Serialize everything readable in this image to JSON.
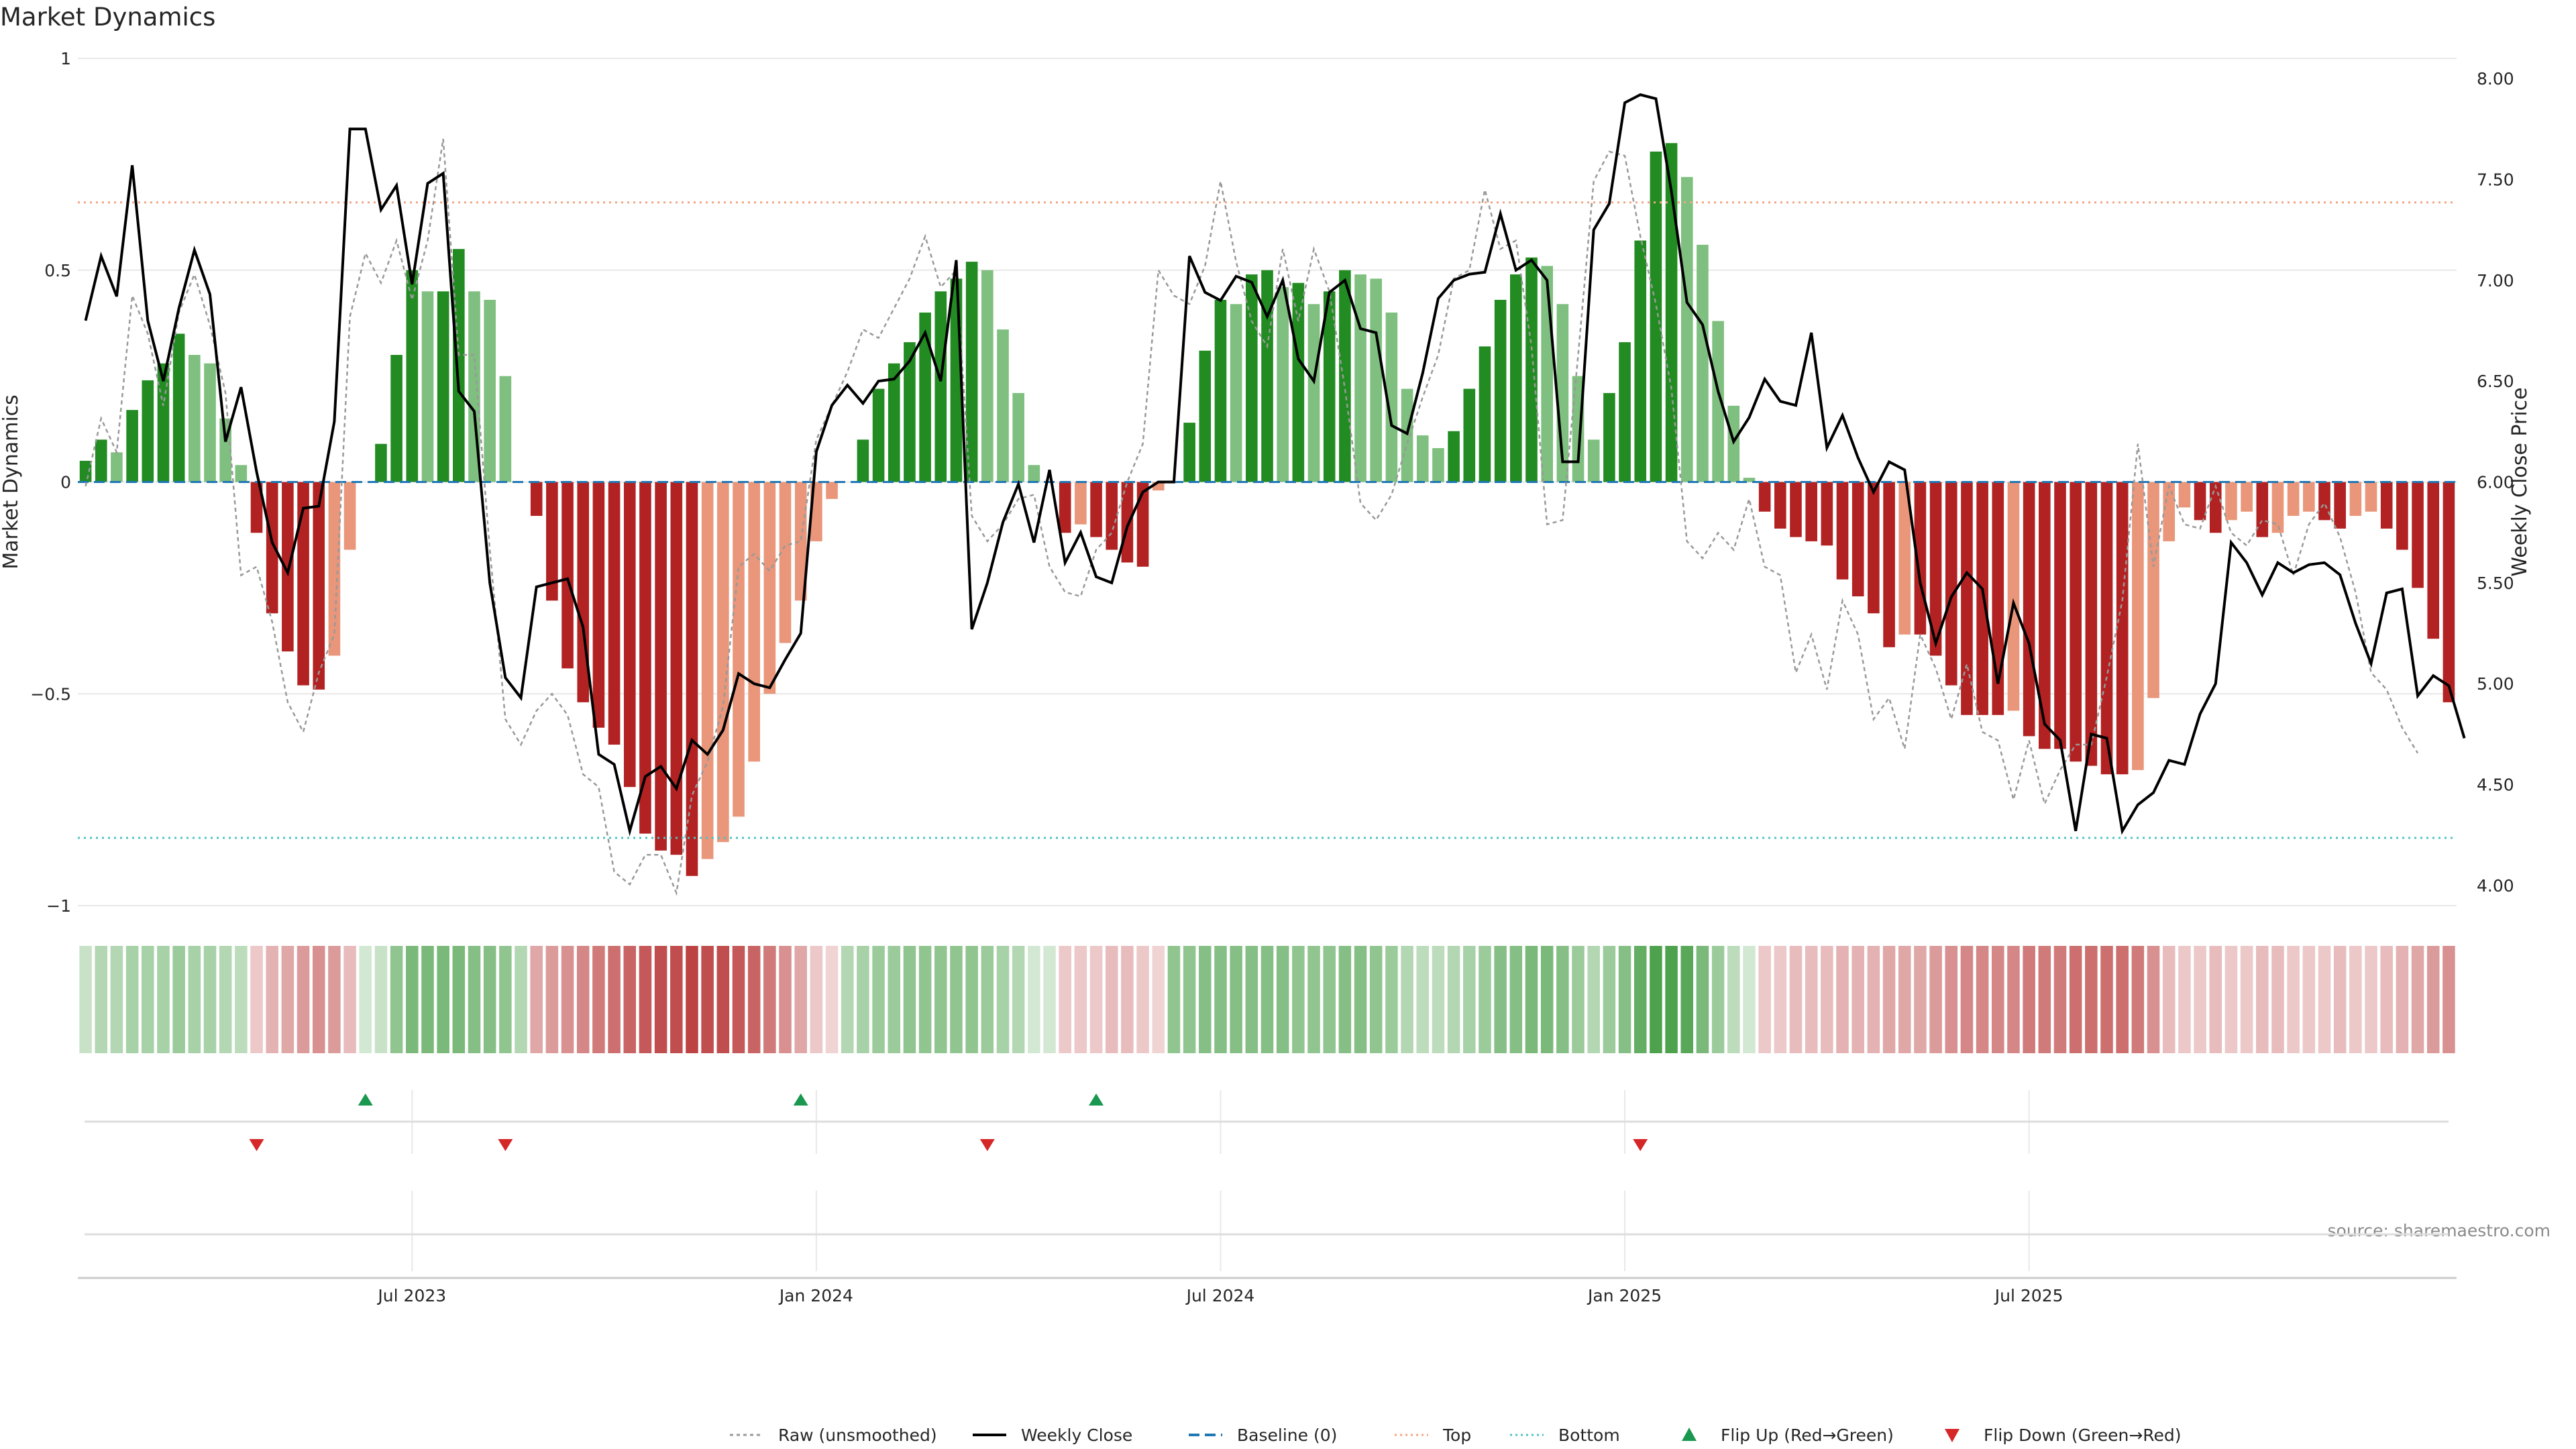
{
  "title": "Market Dynamics",
  "source": "source: sharemaestro.com",
  "colors": {
    "strong_green": "#228b22",
    "light_green": "#7fbf7f",
    "strong_red": "#b22222",
    "light_red": "#e9967a",
    "raw_line": "#999999",
    "close_line": "#000000",
    "baseline": "#1f77b4",
    "top_line": "#f4a582",
    "bottom_line": "#4fc3c3",
    "flip_up": "#1a9850",
    "flip_down": "#d62728",
    "grid": "#e8e8e8"
  },
  "chart_data": {
    "type": "bar",
    "ylabel_left": "Market Dynamics",
    "ylabel_right": "Weekly Close Price",
    "ylim_left": [
      -1,
      1
    ],
    "ylim_right": [
      3.9,
      8.1
    ],
    "yticks_left": [
      "1",
      "0.5",
      "0",
      "−0.5",
      "−1"
    ],
    "yticks_left_values": [
      1,
      0.5,
      0,
      -0.5,
      -1
    ],
    "yticks_right": [
      "8.00",
      "7.50",
      "7.00",
      "6.50",
      "6.00",
      "5.50",
      "5.00",
      "4.50",
      "4.00"
    ],
    "yticks_right_values": [
      8.0,
      7.5,
      7.0,
      6.5,
      6.0,
      5.5,
      5.0,
      4.5,
      4.0
    ],
    "x_ticks": [
      {
        "label": "Jul 2023",
        "week": 21
      },
      {
        "label": "Jan 2024",
        "week": 47
      },
      {
        "label": "Jul 2024",
        "week": 73
      },
      {
        "label": "Jan 2025",
        "week": 99
      },
      {
        "label": "Jul 2025",
        "week": 125
      }
    ],
    "top_threshold": 0.66,
    "bottom_threshold": -0.84,
    "bar_values": [
      0.05,
      0.1,
      0.07,
      0.17,
      0.24,
      0.28,
      0.35,
      0.3,
      0.28,
      0.15,
      0.04,
      -0.12,
      -0.31,
      -0.4,
      -0.48,
      -0.49,
      -0.41,
      -0.16,
      0.0,
      0.09,
      0.3,
      0.5,
      0.45,
      0.45,
      0.55,
      0.45,
      0.43,
      0.25,
      0.0,
      -0.08,
      -0.28,
      -0.44,
      -0.52,
      -0.58,
      -0.62,
      -0.72,
      -0.83,
      -0.87,
      -0.88,
      -0.93,
      -0.89,
      -0.85,
      -0.79,
      -0.66,
      -0.5,
      -0.38,
      -0.28,
      -0.14,
      -0.04,
      0.0,
      0.1,
      0.22,
      0.28,
      0.33,
      0.4,
      0.45,
      0.48,
      0.52,
      0.5,
      0.36,
      0.21,
      0.04,
      0.0,
      -0.12,
      -0.1,
      -0.13,
      -0.16,
      -0.19,
      -0.2,
      -0.02,
      0.0,
      0.14,
      0.31,
      0.43,
      0.42,
      0.49,
      0.5,
      0.46,
      0.47,
      0.42,
      0.45,
      0.5,
      0.49,
      0.48,
      0.4,
      0.22,
      0.11,
      0.08,
      0.12,
      0.22,
      0.32,
      0.43,
      0.49,
      0.53,
      0.51,
      0.42,
      0.25,
      0.1,
      0.21,
      0.33,
      0.57,
      0.78,
      0.8,
      0.72,
      0.56,
      0.38,
      0.18,
      0.01,
      -0.07,
      -0.11,
      -0.13,
      -0.14,
      -0.15,
      -0.23,
      -0.27,
      -0.31,
      -0.39,
      -0.36,
      -0.36,
      -0.41,
      -0.48,
      -0.55,
      -0.55,
      -0.55,
      -0.54,
      -0.6,
      -0.63,
      -0.63,
      -0.66,
      -0.67,
      -0.69,
      -0.69,
      -0.68,
      -0.51,
      -0.14,
      -0.06,
      -0.09,
      -0.12,
      -0.09,
      -0.07,
      -0.13,
      -0.12,
      -0.08,
      -0.07,
      -0.09,
      -0.11,
      -0.08,
      -0.07,
      -0.11,
      -0.16,
      -0.25,
      -0.37,
      -0.52
    ],
    "close_values": [
      6.8,
      7.12,
      6.92,
      7.57,
      6.8,
      6.5,
      6.86,
      7.15,
      6.93,
      6.2,
      6.47,
      6.05,
      5.7,
      5.55,
      5.87,
      5.88,
      6.3,
      7.75,
      7.75,
      7.35,
      7.47,
      6.98,
      7.48,
      7.53,
      6.45,
      6.35,
      5.5,
      5.03,
      4.93,
      5.48,
      5.5,
      5.52,
      5.28,
      4.65,
      4.6,
      4.27,
      4.54,
      4.59,
      4.48,
      4.72,
      4.65,
      4.77,
      5.05,
      5.0,
      4.98,
      5.12,
      5.25,
      6.15,
      6.38,
      6.48,
      6.39,
      6.5,
      6.51,
      6.6,
      6.74,
      6.5,
      7.1,
      5.27,
      5.5,
      5.8,
      5.99,
      5.7,
      6.06,
      5.6,
      5.75,
      5.53,
      5.5,
      5.78,
      5.95,
      6.0,
      6.0,
      7.12,
      6.94,
      6.9,
      7.02,
      6.99,
      6.82,
      7.0,
      6.61,
      6.5,
      6.94,
      7.0,
      6.76,
      6.74,
      6.28,
      6.24,
      6.54,
      6.91,
      7.0,
      7.03,
      7.04,
      7.33,
      7.05,
      7.1,
      7.0,
      6.1,
      6.1,
      7.25,
      7.38,
      7.88,
      7.92,
      7.9,
      7.44,
      6.89,
      6.78,
      6.45,
      6.2,
      6.32,
      6.51,
      6.4,
      6.38,
      6.74,
      6.17,
      6.33,
      6.12,
      5.95,
      6.1,
      6.06,
      5.5,
      5.2,
      5.43,
      5.55,
      5.47,
      5.0,
      5.4,
      5.2,
      4.8,
      4.72,
      4.27,
      4.75,
      4.73,
      4.27,
      4.4,
      4.46,
      4.62,
      4.6,
      4.85,
      5.0,
      5.7,
      5.6,
      5.44,
      5.6,
      5.55,
      5.59,
      5.6,
      5.54,
      5.3,
      5.1,
      5.45,
      5.47,
      4.94,
      5.04,
      4.99,
      4.73
    ],
    "raw_values": [
      -0.01,
      0.15,
      0.07,
      0.44,
      0.35,
      0.18,
      0.4,
      0.49,
      0.37,
      0.21,
      -0.22,
      -0.2,
      -0.33,
      -0.52,
      -0.59,
      -0.45,
      -0.36,
      0.39,
      0.54,
      0.47,
      0.57,
      0.43,
      0.57,
      0.81,
      0.3,
      0.3,
      -0.16,
      -0.56,
      -0.62,
      -0.54,
      -0.5,
      -0.55,
      -0.69,
      -0.72,
      -0.92,
      -0.95,
      -0.88,
      -0.88,
      -0.97,
      -0.74,
      -0.66,
      -0.53,
      -0.2,
      -0.17,
      -0.21,
      -0.15,
      -0.14,
      0.1,
      0.18,
      0.26,
      0.36,
      0.34,
      0.41,
      0.48,
      0.58,
      0.46,
      0.5,
      -0.08,
      -0.14,
      -0.1,
      -0.04,
      -0.03,
      -0.2,
      -0.26,
      -0.27,
      -0.16,
      -0.12,
      0.0,
      0.09,
      0.5,
      0.44,
      0.42,
      0.51,
      0.71,
      0.52,
      0.38,
      0.32,
      0.55,
      0.38,
      0.55,
      0.45,
      0.22,
      -0.05,
      -0.09,
      -0.03,
      0.09,
      0.2,
      0.3,
      0.48,
      0.5,
      0.69,
      0.55,
      0.57,
      0.32,
      -0.1,
      -0.09,
      0.3,
      0.71,
      0.78,
      0.77,
      0.58,
      0.42,
      0.22,
      -0.14,
      -0.18,
      -0.12,
      -0.16,
      -0.04,
      -0.2,
      -0.22,
      -0.45,
      -0.36,
      -0.49,
      -0.28,
      -0.36,
      -0.56,
      -0.51,
      -0.63,
      -0.36,
      -0.44,
      -0.56,
      -0.43,
      -0.59,
      -0.61,
      -0.75,
      -0.61,
      -0.76,
      -0.68,
      -0.62,
      -0.62,
      -0.46,
      -0.28,
      0.09,
      -0.2,
      -0.01,
      -0.1,
      -0.11,
      -0.01,
      -0.12,
      -0.15,
      -0.09,
      -0.1,
      -0.22,
      -0.1,
      -0.05,
      -0.13,
      -0.26,
      -0.45,
      -0.49,
      -0.58,
      -0.64
    ],
    "heat_intensity": [
      0.25,
      0.35,
      0.35,
      0.4,
      0.4,
      0.4,
      0.45,
      0.4,
      0.4,
      0.35,
      0.3,
      0.25,
      0.35,
      0.4,
      0.45,
      0.5,
      0.45,
      0.3,
      0.2,
      0.25,
      0.5,
      0.6,
      0.6,
      0.6,
      0.6,
      0.55,
      0.55,
      0.5,
      0.35,
      0.4,
      0.45,
      0.5,
      0.55,
      0.6,
      0.65,
      0.7,
      0.75,
      0.8,
      0.8,
      0.85,
      0.8,
      0.8,
      0.75,
      0.7,
      0.6,
      0.5,
      0.4,
      0.25,
      0.2,
      0.35,
      0.4,
      0.45,
      0.45,
      0.5,
      0.5,
      0.5,
      0.5,
      0.5,
      0.45,
      0.4,
      0.35,
      0.2,
      0.2,
      0.25,
      0.25,
      0.25,
      0.3,
      0.3,
      0.25,
      0.2,
      0.5,
      0.5,
      0.55,
      0.55,
      0.55,
      0.55,
      0.55,
      0.55,
      0.5,
      0.5,
      0.5,
      0.55,
      0.55,
      0.5,
      0.45,
      0.35,
      0.3,
      0.3,
      0.35,
      0.4,
      0.45,
      0.55,
      0.55,
      0.6,
      0.6,
      0.55,
      0.45,
      0.35,
      0.45,
      0.55,
      0.7,
      0.8,
      0.8,
      0.75,
      0.6,
      0.45,
      0.3,
      0.2,
      0.25,
      0.25,
      0.3,
      0.3,
      0.3,
      0.35,
      0.35,
      0.35,
      0.4,
      0.4,
      0.4,
      0.45,
      0.5,
      0.55,
      0.55,
      0.55,
      0.55,
      0.6,
      0.6,
      0.6,
      0.65,
      0.65,
      0.65,
      0.65,
      0.6,
      0.5,
      0.3,
      0.25,
      0.25,
      0.3,
      0.25,
      0.25,
      0.3,
      0.3,
      0.25,
      0.25,
      0.25,
      0.3,
      0.25,
      0.25,
      0.3,
      0.35,
      0.4,
      0.45,
      0.5
    ],
    "flip_up_weeks": [
      18,
      46,
      65
    ],
    "flip_down_weeks": [
      11,
      27,
      58,
      100
    ],
    "legend": [
      {
        "label": "Raw (unsmoothed)",
        "kind": "dotted-gray"
      },
      {
        "label": "Weekly Close",
        "kind": "solid-black"
      },
      {
        "label": "Baseline (0)",
        "kind": "dashed-blue"
      },
      {
        "label": "Top",
        "kind": "dotted-orange"
      },
      {
        "label": "Bottom",
        "kind": "dotted-teal"
      },
      {
        "label": "Flip Up (Red→Green)",
        "kind": "triangle-up"
      },
      {
        "label": "Flip Down (Green→Red)",
        "kind": "triangle-down"
      }
    ],
    "grid": true,
    "legend_position": "bottom-center"
  }
}
